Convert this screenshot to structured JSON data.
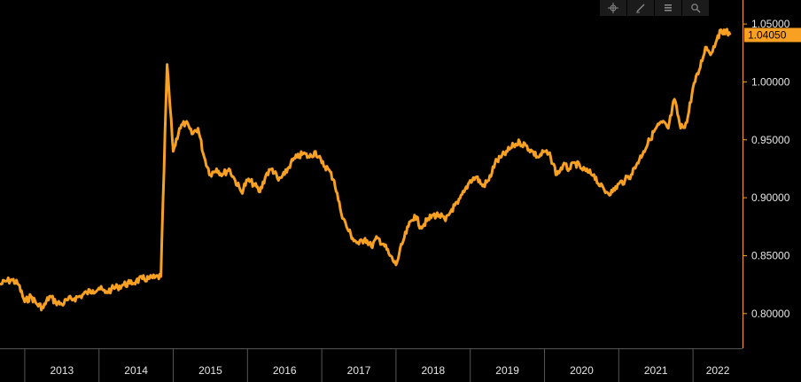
{
  "toolbar": {
    "items": [
      {
        "name": "crosshair-icon"
      },
      {
        "name": "draw-line-icon"
      },
      {
        "name": "legend-icon"
      },
      {
        "name": "zoom-icon"
      }
    ]
  },
  "colors": {
    "background": "#000000",
    "line": "#f7a021",
    "axis": "#f7a021",
    "grid": "#2a2a2a",
    "text": "#e6e6e6",
    "tag": "#f7a021"
  },
  "chart_data": {
    "type": "line",
    "title": "",
    "xlabel": "",
    "ylabel": "",
    "grid": false,
    "legend": "none",
    "x_ticks": [
      "2013",
      "2014",
      "2015",
      "2016",
      "2017",
      "2018",
      "2019",
      "2020",
      "2021",
      "2022"
    ],
    "y_ticks": [
      "0.80000",
      "0.85000",
      "0.90000",
      "0.95000",
      "1.00000",
      "1.05000"
    ],
    "y_range": [
      0.77,
      1.06
    ],
    "x_range": [
      "2012-09",
      "2022-09"
    ],
    "last_value_label": "1.04050",
    "last_value": 1.0405,
    "series": [
      {
        "points": [
          [
            "2012-09",
            0.825
          ],
          [
            "2012-10",
            0.828
          ],
          [
            "2012-11",
            0.829
          ],
          [
            "2012-12",
            0.825
          ],
          [
            "2013-01",
            0.81
          ],
          [
            "2013-02",
            0.815
          ],
          [
            "2013-03",
            0.808
          ],
          [
            "2013-04",
            0.805
          ],
          [
            "2013-05",
            0.815
          ],
          [
            "2013-06",
            0.81
          ],
          [
            "2013-07",
            0.808
          ],
          [
            "2013-08",
            0.812
          ],
          [
            "2013-09",
            0.813
          ],
          [
            "2013-10",
            0.815
          ],
          [
            "2013-11",
            0.818
          ],
          [
            "2013-12",
            0.82
          ],
          [
            "2014-01",
            0.822
          ],
          [
            "2014-02",
            0.818
          ],
          [
            "2014-03",
            0.821
          ],
          [
            "2014-04",
            0.823
          ],
          [
            "2014-05",
            0.825
          ],
          [
            "2014-06",
            0.826
          ],
          [
            "2014-07",
            0.828
          ],
          [
            "2014-08",
            0.83
          ],
          [
            "2014-09",
            0.83
          ],
          [
            "2014-10",
            0.831
          ],
          [
            "2014-11",
            0.832
          ],
          [
            "2014-12",
            1.015
          ],
          [
            "2015-01",
            0.94
          ],
          [
            "2015-02",
            0.96
          ],
          [
            "2015-03",
            0.965
          ],
          [
            "2015-04",
            0.955
          ],
          [
            "2015-05",
            0.96
          ],
          [
            "2015-06",
            0.935
          ],
          [
            "2015-07",
            0.92
          ],
          [
            "2015-08",
            0.925
          ],
          [
            "2015-09",
            0.92
          ],
          [
            "2015-10",
            0.925
          ],
          [
            "2015-11",
            0.915
          ],
          [
            "2015-12",
            0.905
          ],
          [
            "2016-01",
            0.915
          ],
          [
            "2016-02",
            0.912
          ],
          [
            "2016-03",
            0.905
          ],
          [
            "2016-04",
            0.92
          ],
          [
            "2016-05",
            0.925
          ],
          [
            "2016-06",
            0.915
          ],
          [
            "2016-07",
            0.92
          ],
          [
            "2016-08",
            0.93
          ],
          [
            "2016-09",
            0.935
          ],
          [
            "2016-10",
            0.938
          ],
          [
            "2016-11",
            0.935
          ],
          [
            "2016-12",
            0.94
          ],
          [
            "2017-01",
            0.93
          ],
          [
            "2017-02",
            0.925
          ],
          [
            "2017-03",
            0.915
          ],
          [
            "2017-04",
            0.89
          ],
          [
            "2017-05",
            0.875
          ],
          [
            "2017-06",
            0.865
          ],
          [
            "2017-07",
            0.86
          ],
          [
            "2017-08",
            0.865
          ],
          [
            "2017-09",
            0.858
          ],
          [
            "2017-10",
            0.865
          ],
          [
            "2017-11",
            0.86
          ],
          [
            "2017-12",
            0.85
          ],
          [
            "2018-01",
            0.842
          ],
          [
            "2018-02",
            0.86
          ],
          [
            "2018-03",
            0.875
          ],
          [
            "2018-04",
            0.885
          ],
          [
            "2018-05",
            0.875
          ],
          [
            "2018-06",
            0.88
          ],
          [
            "2018-07",
            0.885
          ],
          [
            "2018-08",
            0.885
          ],
          [
            "2018-09",
            0.88
          ],
          [
            "2018-10",
            0.89
          ],
          [
            "2018-11",
            0.895
          ],
          [
            "2018-12",
            0.905
          ],
          [
            "2019-01",
            0.915
          ],
          [
            "2019-02",
            0.918
          ],
          [
            "2019-03",
            0.91
          ],
          [
            "2019-04",
            0.915
          ],
          [
            "2019-05",
            0.93
          ],
          [
            "2019-06",
            0.935
          ],
          [
            "2019-07",
            0.94
          ],
          [
            "2019-08",
            0.945
          ],
          [
            "2019-09",
            0.948
          ],
          [
            "2019-10",
            0.945
          ],
          [
            "2019-11",
            0.94
          ],
          [
            "2019-12",
            0.935
          ],
          [
            "2020-01",
            0.94
          ],
          [
            "2020-02",
            0.935
          ],
          [
            "2020-03",
            0.92
          ],
          [
            "2020-04",
            0.928
          ],
          [
            "2020-05",
            0.925
          ],
          [
            "2020-06",
            0.93
          ],
          [
            "2020-07",
            0.925
          ],
          [
            "2020-08",
            0.922
          ],
          [
            "2020-09",
            0.92
          ],
          [
            "2020-10",
            0.91
          ],
          [
            "2020-11",
            0.905
          ],
          [
            "2020-12",
            0.905
          ],
          [
            "2021-01",
            0.912
          ],
          [
            "2021-02",
            0.915
          ],
          [
            "2021-03",
            0.92
          ],
          [
            "2021-04",
            0.93
          ],
          [
            "2021-05",
            0.94
          ],
          [
            "2021-06",
            0.95
          ],
          [
            "2021-07",
            0.96
          ],
          [
            "2021-08",
            0.965
          ],
          [
            "2021-09",
            0.96
          ],
          [
            "2021-10",
            0.985
          ],
          [
            "2021-11",
            0.96
          ],
          [
            "2021-12",
            0.965
          ],
          [
            "2022-01",
            0.995
          ],
          [
            "2022-02",
            1.01
          ],
          [
            "2022-03",
            1.03
          ],
          [
            "2022-04",
            1.025
          ],
          [
            "2022-05",
            1.04
          ],
          [
            "2022-06",
            1.045
          ],
          [
            "2022-07",
            1.0405
          ]
        ]
      }
    ]
  }
}
